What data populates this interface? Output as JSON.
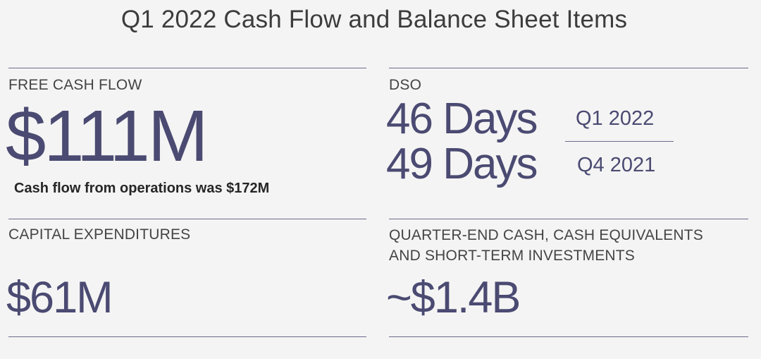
{
  "slide": {
    "title": "Q1 2022 Cash Flow and Balance Sheet Items"
  },
  "free_cash_flow": {
    "label": "FREE CASH FLOW",
    "value": "$111M",
    "note": "Cash flow from operations was $172M"
  },
  "dso": {
    "label": "DSO",
    "rows": [
      {
        "value": "46 Days",
        "period": "Q1 2022"
      },
      {
        "value": "49 Days",
        "period": "Q4 2021"
      }
    ]
  },
  "capital_expenditures": {
    "label": "CAPITAL EXPENDITURES",
    "value": "$61M"
  },
  "cash": {
    "label_line1": "QUARTER-END CASH, CASH EQUIVALENTS",
    "label_line2": "AND SHORT-TERM INVESTMENTS",
    "value": "~$1.4B"
  },
  "colors": {
    "accent": "#4a4a72",
    "rule": "#6a6a8c",
    "background": "#f4f4f4"
  }
}
